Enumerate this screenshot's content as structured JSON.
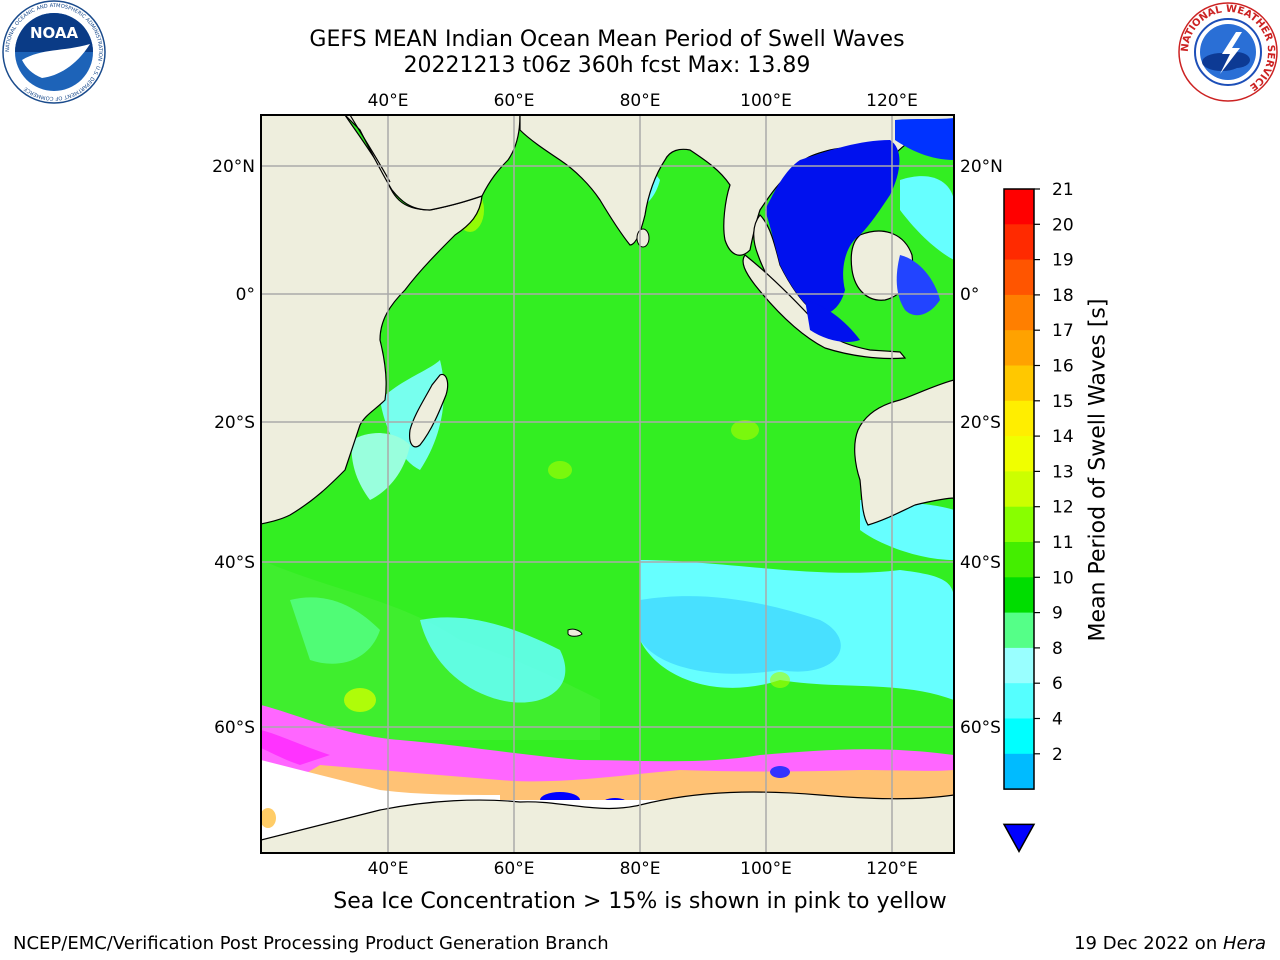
{
  "header": {
    "title_line1": "GEFS MEAN Indian Ocean Mean Period of Swell Waves",
    "title_line2": "20221213 t06z 360h fcst   Max: 13.89"
  },
  "logos": {
    "left": "NOAA",
    "left_ring_text": "NATIONAL OCEANIC AND ATMOSPHERIC ADMINISTRATION · U.S. DEPARTMENT OF COMMERCE",
    "right_ring_text": "NATIONAL WEATHER SERVICE"
  },
  "map": {
    "lon_labels": [
      "40°E",
      "60°E",
      "80°E",
      "100°E",
      "120°E"
    ],
    "lat_labels_left": [
      "20°N",
      "0°",
      "20°S",
      "40°S",
      "60°S"
    ],
    "lat_labels_right": [
      "20°N",
      "0°",
      "20°S",
      "40°S",
      "60°S"
    ],
    "lon_range": [
      20,
      130
    ],
    "lat_range": [
      -73,
      28
    ],
    "colors": {
      "land": "#eeeedd",
      "ocean_green": "#33ee22",
      "ocean_light_green": "#66ff66",
      "ocean_cyan": "#66ffff",
      "ocean_blue": "#0022ee",
      "ice_pink": "#ff66ff",
      "ice_yellow": "#ffff66",
      "antarctic_white": "#ffffff"
    }
  },
  "colorbar": {
    "title": "Mean Period of Swell Waves [s]",
    "ticks": [
      "21",
      "20",
      "19",
      "18",
      "17",
      "16",
      "15",
      "14",
      "13",
      "12",
      "11",
      "10",
      "9",
      "8",
      "6",
      "4",
      "2"
    ],
    "colors": [
      "#ff0000",
      "#ff2a00",
      "#ff5500",
      "#ff7f00",
      "#ffa200",
      "#ffc800",
      "#ffee00",
      "#f0ff00",
      "#ccff00",
      "#88ff00",
      "#44ee00",
      "#00dd00",
      "#55ff88",
      "#99ffff",
      "#55ffff",
      "#00ffff",
      "#00bbff",
      "#0077ff"
    ],
    "under_color": "#0000ff"
  },
  "caption": "Sea Ice Concentration > 15% is shown in pink to yellow",
  "footer": {
    "left": "NCEP/EMC/Verification Post Processing Product Generation Branch",
    "right_date": "19 Dec 2022 on ",
    "right_host": "Hera"
  }
}
